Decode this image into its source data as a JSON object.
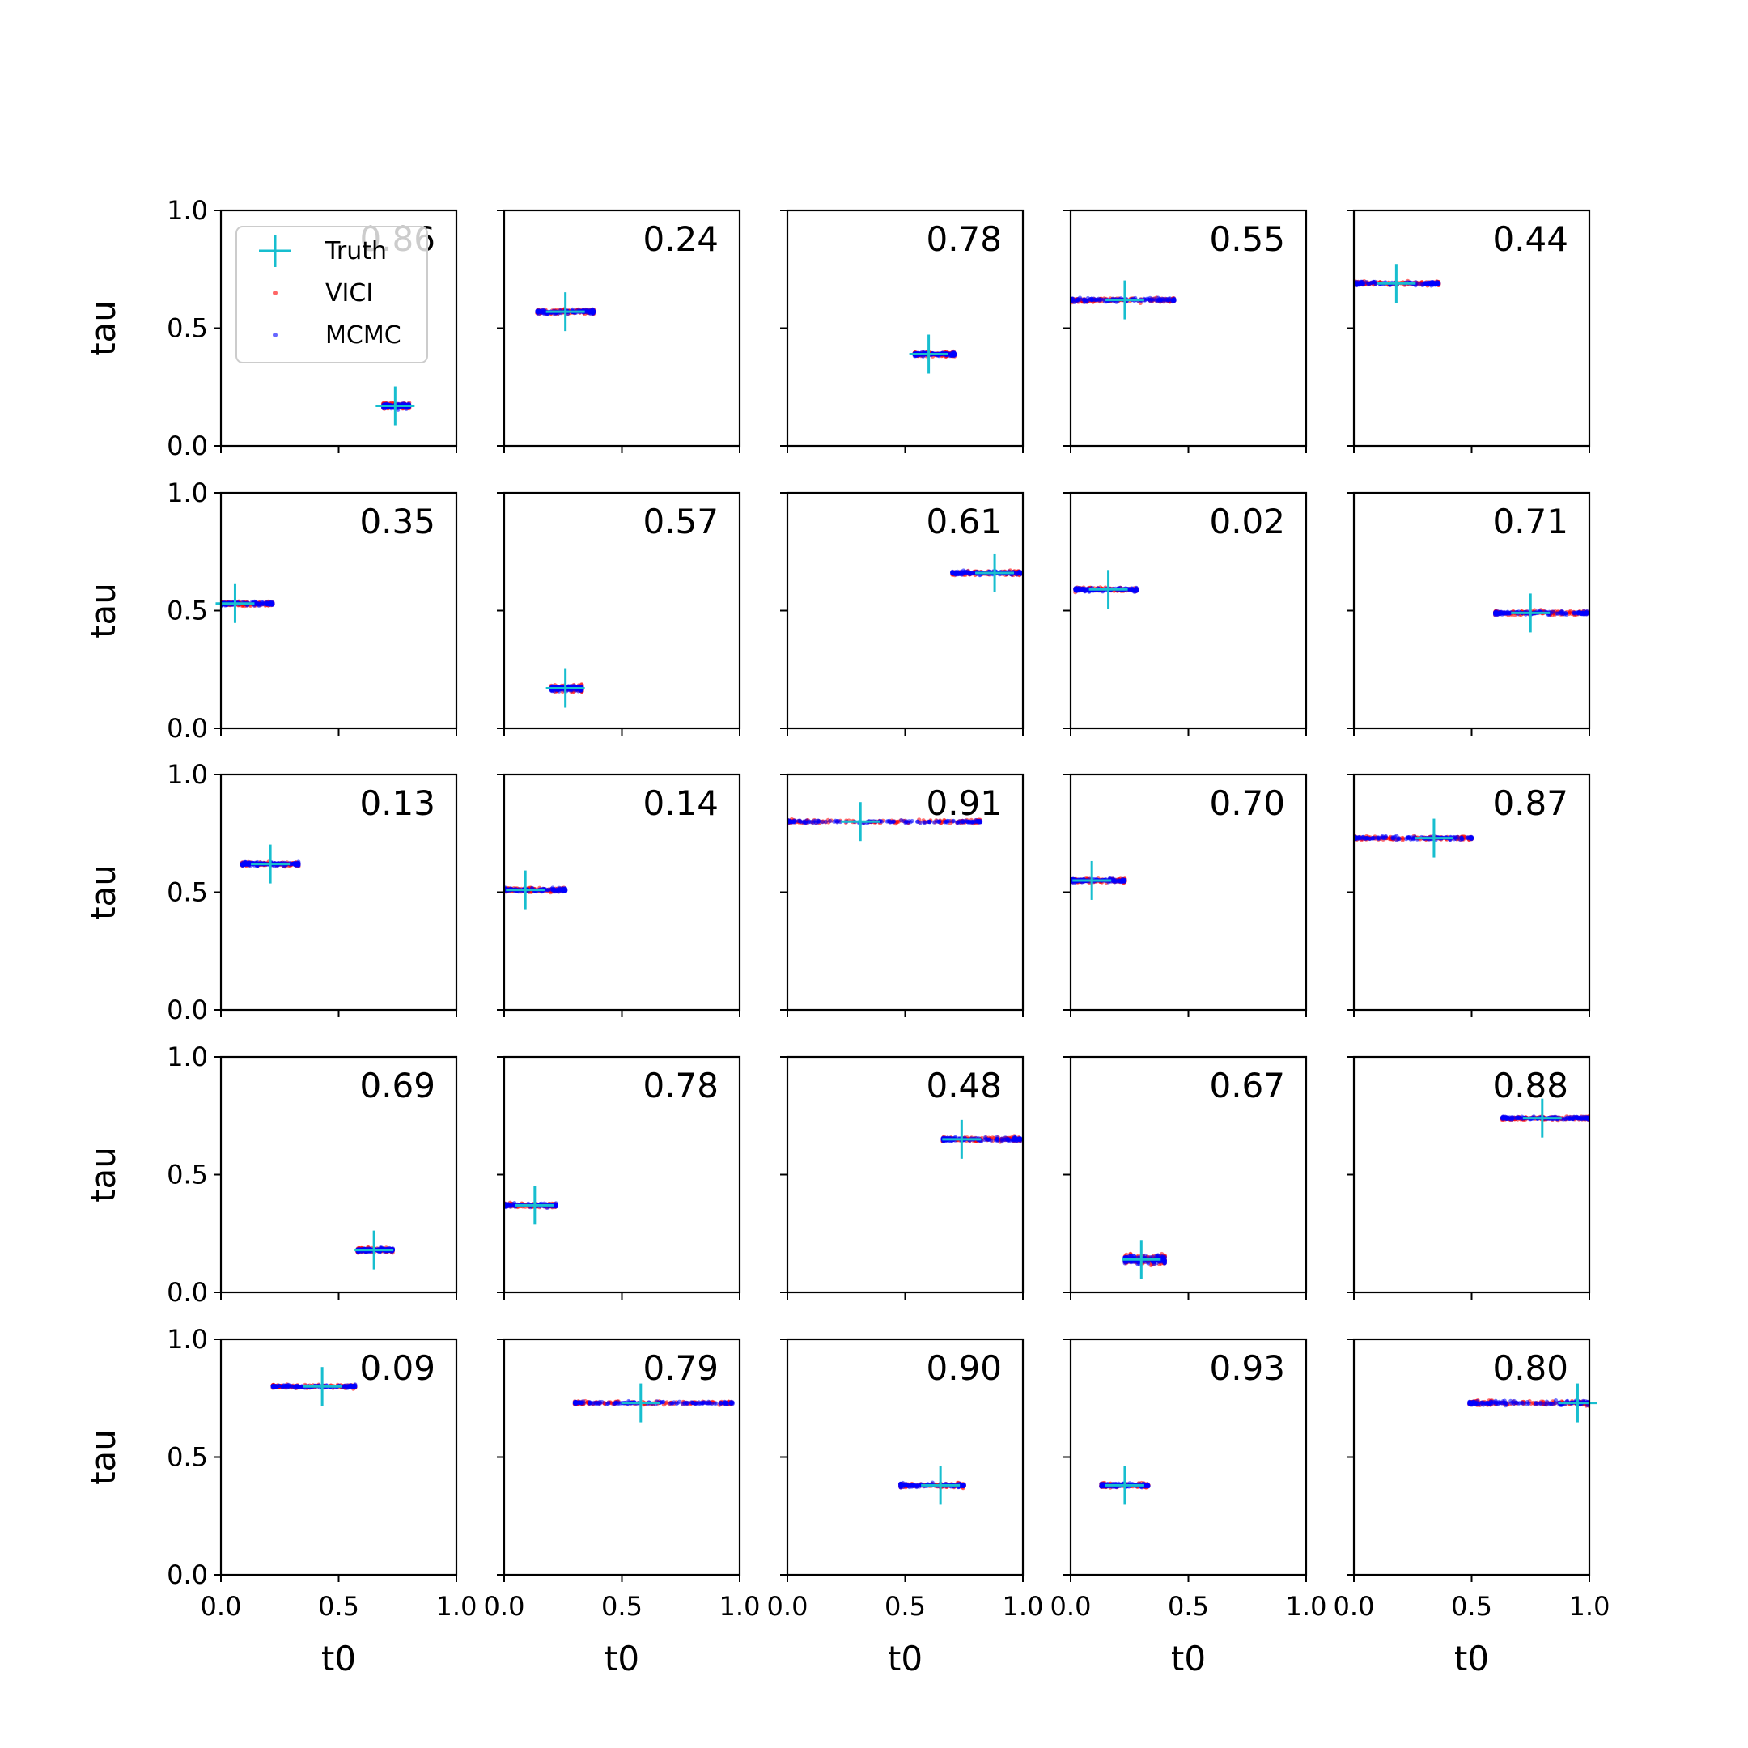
{
  "figure": {
    "xlabel": "t0",
    "ylabel": "tau",
    "legend": {
      "placement": "top-left of first panel",
      "entries": [
        {
          "label": "Truth",
          "marker": "plus",
          "color": "#17becf"
        },
        {
          "label": "VICI",
          "marker": "dot",
          "color": "#ff0000"
        },
        {
          "label": "MCMC",
          "marker": "dot",
          "color": "#0000ff"
        }
      ]
    }
  },
  "chart_data": {
    "type": "scatter",
    "layout": "5x5 grid of subplots",
    "xlabel": "t0",
    "ylabel": "tau",
    "xlim": [
      0,
      1
    ],
    "ylim": [
      0,
      1
    ],
    "xticks": [
      "0.0",
      "0.5",
      "1.0"
    ],
    "yticks": [
      "0.0",
      "0.5",
      "1.0"
    ],
    "grid": false,
    "series": [
      {
        "name": "Truth"
      },
      {
        "name": "VICI"
      },
      {
        "name": "MCMC"
      }
    ],
    "panels": [
      {
        "label": "0.86",
        "truth": [
          0.74,
          0.17
        ],
        "t0_range": [
          0.69,
          0.8
        ],
        "tau_spread": 0.015
      },
      {
        "label": "0.24",
        "truth": [
          0.26,
          0.57
        ],
        "t0_range": [
          0.14,
          0.38
        ],
        "tau_spread": 0.012
      },
      {
        "label": "0.78",
        "truth": [
          0.6,
          0.39
        ],
        "t0_range": [
          0.54,
          0.71
        ],
        "tau_spread": 0.01
      },
      {
        "label": "0.55",
        "truth": [
          0.23,
          0.62
        ],
        "t0_range": [
          0.0,
          0.44
        ],
        "tau_spread": 0.01
      },
      {
        "label": "0.44",
        "truth": [
          0.18,
          0.69
        ],
        "t0_range": [
          0.0,
          0.36
        ],
        "tau_spread": 0.01
      },
      {
        "label": "0.35",
        "truth": [
          0.06,
          0.53
        ],
        "t0_range": [
          0.0,
          0.22
        ],
        "tau_spread": 0.01
      },
      {
        "label": "0.57",
        "truth": [
          0.26,
          0.17
        ],
        "t0_range": [
          0.2,
          0.33
        ],
        "tau_spread": 0.015
      },
      {
        "label": "0.61",
        "truth": [
          0.88,
          0.66
        ],
        "t0_range": [
          0.7,
          0.99
        ],
        "tau_spread": 0.01
      },
      {
        "label": "0.02",
        "truth": [
          0.16,
          0.59
        ],
        "t0_range": [
          0.02,
          0.28
        ],
        "tau_spread": 0.01
      },
      {
        "label": "0.71",
        "truth": [
          0.75,
          0.49
        ],
        "t0_range": [
          0.6,
          0.99
        ],
        "tau_spread": 0.01
      },
      {
        "label": "0.13",
        "truth": [
          0.21,
          0.62
        ],
        "t0_range": [
          0.09,
          0.33
        ],
        "tau_spread": 0.01
      },
      {
        "label": "0.14",
        "truth": [
          0.09,
          0.51
        ],
        "t0_range": [
          0.0,
          0.26
        ],
        "tau_spread": 0.01
      },
      {
        "label": "0.91",
        "truth": [
          0.31,
          0.8
        ],
        "t0_range": [
          0.0,
          0.82
        ],
        "tau_spread": 0.008
      },
      {
        "label": "0.70",
        "truth": [
          0.09,
          0.55
        ],
        "t0_range": [
          0.0,
          0.23
        ],
        "tau_spread": 0.01
      },
      {
        "label": "0.87",
        "truth": [
          0.34,
          0.73
        ],
        "t0_range": [
          0.0,
          0.5
        ],
        "tau_spread": 0.008
      },
      {
        "label": "0.69",
        "truth": [
          0.65,
          0.18
        ],
        "t0_range": [
          0.58,
          0.73
        ],
        "tau_spread": 0.012
      },
      {
        "label": "0.78",
        "truth": [
          0.13,
          0.37
        ],
        "t0_range": [
          0.0,
          0.22
        ],
        "tau_spread": 0.01
      },
      {
        "label": "0.48",
        "truth": [
          0.74,
          0.65
        ],
        "t0_range": [
          0.66,
          0.99
        ],
        "tau_spread": 0.01
      },
      {
        "label": "0.67",
        "truth": [
          0.3,
          0.14
        ],
        "t0_range": [
          0.23,
          0.4
        ],
        "tau_spread": 0.025
      },
      {
        "label": "0.88",
        "truth": [
          0.8,
          0.74
        ],
        "t0_range": [
          0.63,
          1.0
        ],
        "tau_spread": 0.008
      },
      {
        "label": "0.09",
        "truth": [
          0.43,
          0.8
        ],
        "t0_range": [
          0.22,
          0.57
        ],
        "tau_spread": 0.008
      },
      {
        "label": "0.79",
        "truth": [
          0.58,
          0.73
        ],
        "t0_range": [
          0.3,
          0.97
        ],
        "tau_spread": 0.008
      },
      {
        "label": "0.90",
        "truth": [
          0.65,
          0.38
        ],
        "t0_range": [
          0.48,
          0.75
        ],
        "tau_spread": 0.01
      },
      {
        "label": "0.93",
        "truth": [
          0.23,
          0.38
        ],
        "t0_range": [
          0.13,
          0.33
        ],
        "tau_spread": 0.01
      },
      {
        "label": "0.80",
        "truth": [
          0.95,
          0.73
        ],
        "t0_range": [
          0.49,
          1.0
        ],
        "tau_spread": 0.012
      }
    ]
  }
}
